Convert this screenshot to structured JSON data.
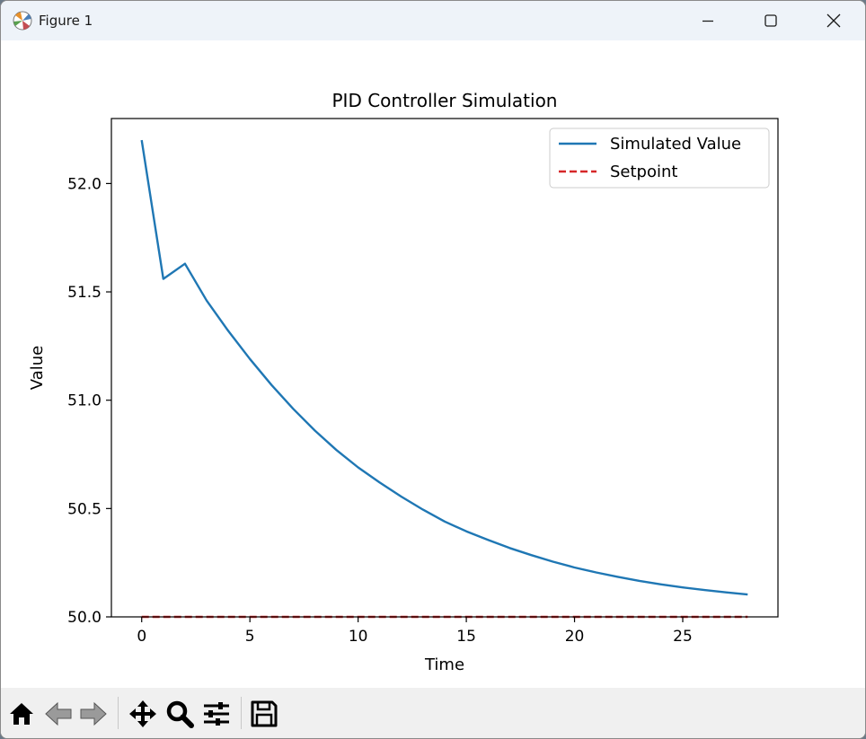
{
  "window": {
    "title": "Figure 1",
    "icon": "matplotlib-icon",
    "controls": [
      "minimize-icon",
      "maximize-icon",
      "close-icon"
    ]
  },
  "toolbar": {
    "buttons": [
      "home-icon",
      "back-arrow-icon",
      "forward-arrow-icon",
      "pan-icon",
      "zoom-icon",
      "subplots-icon",
      "save-icon"
    ]
  },
  "chart_data": {
    "type": "line",
    "title": "PID Controller Simulation",
    "xlabel": "Time",
    "ylabel": "Value",
    "xlim": [
      -1.4,
      29.4
    ],
    "ylim": [
      50.0,
      52.3
    ],
    "xticks": [
      0,
      5,
      10,
      15,
      20,
      25
    ],
    "yticks": [
      50.0,
      50.5,
      51.0,
      51.5,
      52.0
    ],
    "xtick_labels": [
      "0",
      "5",
      "10",
      "15",
      "20",
      "25"
    ],
    "ytick_labels": [
      "50.0",
      "50.5",
      "51.0",
      "51.5",
      "52.0"
    ],
    "grid": false,
    "legend": "top-right",
    "series": [
      {
        "name": "Simulated Value",
        "color": "#1f77b4",
        "style": "solid",
        "x": [
          0,
          1,
          2,
          3,
          4,
          5,
          6,
          7,
          8,
          9,
          10,
          11,
          12,
          13,
          14,
          15,
          16,
          17,
          18,
          19,
          20,
          21,
          22,
          23,
          24,
          25,
          26,
          27,
          28
        ],
        "y": [
          52.2,
          51.56,
          51.63,
          51.46,
          51.32,
          51.19,
          51.07,
          50.96,
          50.86,
          50.77,
          50.69,
          50.62,
          50.555,
          50.495,
          50.44,
          50.395,
          50.355,
          50.318,
          50.285,
          50.255,
          50.228,
          50.205,
          50.185,
          50.166,
          50.15,
          50.136,
          50.124,
          50.113,
          50.103
        ]
      },
      {
        "name": "Setpoint",
        "color": "#d62728",
        "style": "dashed",
        "x": [
          0,
          28
        ],
        "y": [
          50.0,
          50.0
        ]
      }
    ]
  }
}
